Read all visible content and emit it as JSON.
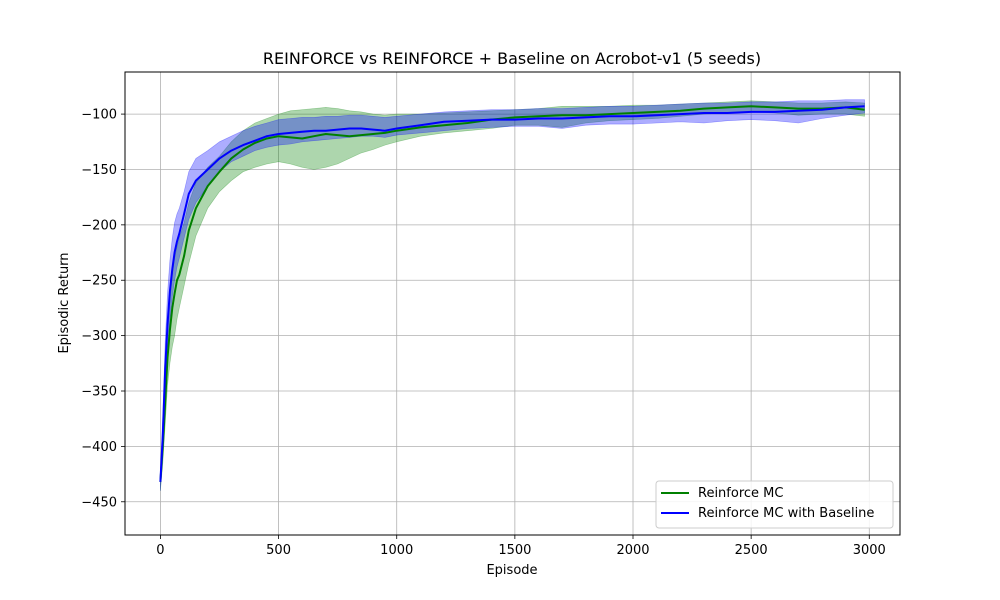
{
  "chart_data": {
    "type": "line",
    "title": "REINFORCE vs REINFORCE + Baseline on Acrobot-v1 (5 seeds)",
    "xlabel": "Episode",
    "ylabel": "Episodic Return",
    "xlim": [
      -150,
      3130
    ],
    "ylim": [
      -480,
      -62
    ],
    "xticks": [
      0,
      500,
      1000,
      1500,
      2000,
      2500,
      3000
    ],
    "yticks": [
      -100,
      -150,
      -200,
      -250,
      -300,
      -350,
      -400,
      -450
    ],
    "grid": true,
    "legend_position": "bottom-right",
    "shaded_band": "variation across seeds",
    "x": [
      0,
      10,
      20,
      30,
      40,
      50,
      60,
      70,
      80,
      100,
      120,
      150,
      200,
      250,
      300,
      350,
      400,
      450,
      500,
      550,
      600,
      650,
      700,
      750,
      800,
      850,
      900,
      950,
      1000,
      1100,
      1200,
      1300,
      1400,
      1500,
      1600,
      1700,
      1800,
      1900,
      2000,
      2100,
      2200,
      2300,
      2400,
      2500,
      2600,
      2700,
      2800,
      2900,
      2980
    ],
    "series": [
      {
        "name": "Reinforce MC",
        "color": "#008000",
        "values": [
          -432,
          -400,
          -360,
          -320,
          -295,
          -275,
          -262,
          -250,
          -245,
          -228,
          -205,
          -185,
          -165,
          -152,
          -140,
          -132,
          -126,
          -122,
          -120,
          -121,
          -122,
          -120,
          -118,
          -119,
          -120,
          -119,
          -118,
          -117,
          -115,
          -112,
          -110,
          -108,
          -105,
          -103,
          -102,
          -101,
          -101,
          -100,
          -99,
          -98,
          -97,
          -95,
          -94,
          -93,
          -94,
          -95,
          -95,
          -94,
          -96
        ],
        "band_lower": [
          -440,
          -415,
          -380,
          -345,
          -325,
          -310,
          -300,
          -285,
          -275,
          -255,
          -235,
          -210,
          -185,
          -170,
          -160,
          -152,
          -148,
          -145,
          -143,
          -145,
          -148,
          -150,
          -148,
          -145,
          -140,
          -135,
          -132,
          -128,
          -125,
          -120,
          -117,
          -115,
          -113,
          -110,
          -110,
          -112,
          -108,
          -106,
          -105,
          -104,
          -102,
          -100,
          -99,
          -98,
          -99,
          -101,
          -100,
          -100,
          -102
        ],
        "band_upper": [
          -425,
          -385,
          -340,
          -300,
          -270,
          -245,
          -230,
          -220,
          -212,
          -198,
          -180,
          -162,
          -148,
          -138,
          -125,
          -115,
          -108,
          -104,
          -100,
          -97,
          -96,
          -95,
          -94,
          -95,
          -97,
          -98,
          -100,
          -101,
          -100,
          -100,
          -99,
          -98,
          -97,
          -96,
          -95,
          -93,
          -93,
          -93,
          -92,
          -92,
          -91,
          -90,
          -89,
          -88,
          -89,
          -90,
          -90,
          -89,
          -90
        ]
      },
      {
        "name": "Reinforce MC with Baseline",
        "color": "#0000ff",
        "values": [
          -432,
          -390,
          -330,
          -290,
          -260,
          -240,
          -225,
          -215,
          -208,
          -190,
          -172,
          -160,
          -150,
          -140,
          -133,
          -128,
          -124,
          -120,
          -118,
          -117,
          -116,
          -115,
          -115,
          -114,
          -113,
          -113,
          -114,
          -115,
          -113,
          -110,
          -107,
          -106,
          -105,
          -105,
          -104,
          -104,
          -103,
          -102,
          -102,
          -101,
          -100,
          -99,
          -99,
          -98,
          -98,
          -97,
          -96,
          -94,
          -93
        ],
        "band_lower": [
          -440,
          -405,
          -355,
          -315,
          -285,
          -265,
          -250,
          -238,
          -230,
          -212,
          -195,
          -180,
          -165,
          -152,
          -143,
          -138,
          -133,
          -130,
          -128,
          -127,
          -125,
          -124,
          -123,
          -122,
          -121,
          -120,
          -120,
          -121,
          -119,
          -117,
          -115,
          -113,
          -112,
          -111,
          -111,
          -113,
          -110,
          -109,
          -109,
          -108,
          -107,
          -108,
          -106,
          -105,
          -106,
          -108,
          -104,
          -101,
          -99
        ],
        "band_upper": [
          -425,
          -370,
          -305,
          -262,
          -232,
          -212,
          -198,
          -190,
          -185,
          -170,
          -152,
          -140,
          -133,
          -125,
          -120,
          -115,
          -111,
          -108,
          -105,
          -104,
          -103,
          -103,
          -102,
          -102,
          -101,
          -101,
          -102,
          -103,
          -102,
          -100,
          -98,
          -97,
          -96,
          -96,
          -95,
          -95,
          -94,
          -93,
          -93,
          -92,
          -91,
          -90,
          -90,
          -89,
          -89,
          -88,
          -88,
          -87,
          -87
        ]
      }
    ]
  }
}
